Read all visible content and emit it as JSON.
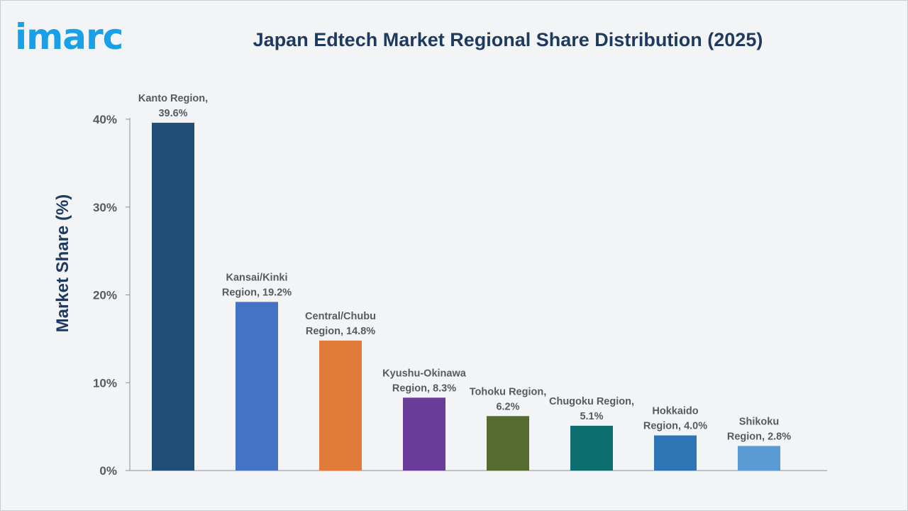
{
  "brand": {
    "logo_text": "imarc",
    "logo_color": "#1aa0e6"
  },
  "chart_data": {
    "type": "bar",
    "title": "Japan Edtech Market Regional Share Distribution (2025)",
    "xlabel": "",
    "ylabel": "Market Share (%)",
    "ylim": [
      0,
      40
    ],
    "yticks": [
      "0%",
      "10%",
      "20%",
      "30%",
      "40%"
    ],
    "ytick_values": [
      0,
      10,
      20,
      30,
      40
    ],
    "grid": false,
    "legend": "none",
    "categories": [
      "Kanto Region",
      "Kansai/Kinki Region",
      "Central/Chubu Region",
      "Kyushu-Okinawa Region",
      "Tohoku Region",
      "Chugoku Region",
      "Hokkaido Region",
      "Shikoku Region"
    ],
    "values": [
      39.6,
      19.2,
      14.8,
      8.3,
      6.2,
      5.1,
      4.0,
      2.8
    ],
    "data_labels": [
      [
        "Kanto Region,",
        "39.6%"
      ],
      [
        "Kansai/Kinki",
        "Region, 19.2%"
      ],
      [
        "Central/Chubu",
        "Region, 14.8%"
      ],
      [
        "Kyushu-Okinawa",
        "Region, 8.3%"
      ],
      [
        "Tohoku Region,",
        "6.2%"
      ],
      [
        "Chugoku Region,",
        "5.1%"
      ],
      [
        "Hokkaido",
        "Region, 4.0%"
      ],
      [
        "Shikoku",
        "Region, 2.8%"
      ]
    ],
    "colors": [
      "#1f4e79",
      "#4472c4",
      "#e07b39",
      "#6a3d9a",
      "#556b2f",
      "#0e6e6e",
      "#2e75b6",
      "#5b9bd5"
    ]
  }
}
